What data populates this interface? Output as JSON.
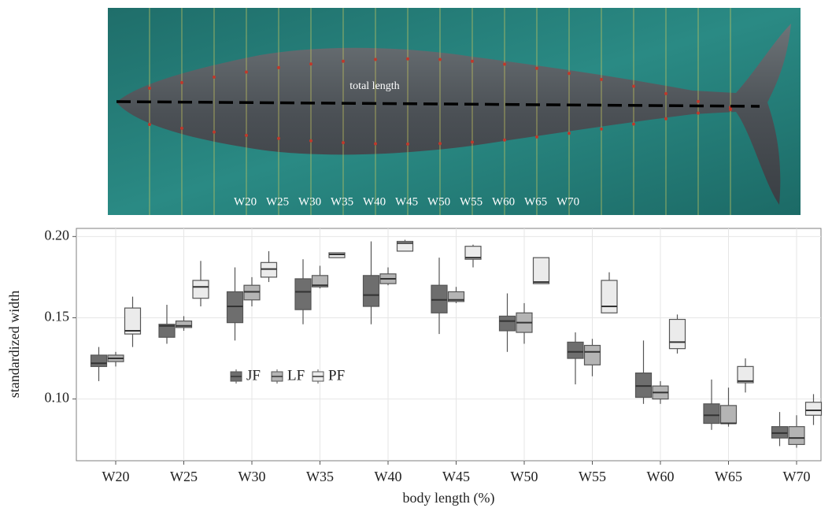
{
  "image": {
    "annotation": "total length",
    "width_labels": [
      "W20",
      "W25",
      "W30",
      "W35",
      "W40",
      "W45",
      "W50",
      "W55",
      "W60",
      "W65",
      "W70"
    ]
  },
  "chart_data": {
    "type": "box",
    "x_label": "body length (%)",
    "y_label": "standardized width",
    "categories": [
      "W20",
      "W25",
      "W30",
      "W35",
      "W40",
      "W45",
      "W50",
      "W55",
      "W60",
      "W65",
      "W70"
    ],
    "ylim": [
      0.062,
      0.205
    ],
    "yticks": [
      {
        "value": 0.1,
        "label": "0.10"
      },
      {
        "value": 0.15,
        "label": "0.15"
      },
      {
        "value": 0.2,
        "label": "0.20"
      }
    ],
    "grid": true,
    "legend": "left",
    "series": [
      {
        "name": "JF",
        "color": "#6e6e6e",
        "min": [
          0.111,
          0.134,
          0.136,
          0.146,
          0.146,
          0.14,
          0.129,
          0.109,
          0.097,
          0.081,
          0.071
        ],
        "q1": [
          0.12,
          0.138,
          0.147,
          0.155,
          0.157,
          0.153,
          0.142,
          0.125,
          0.101,
          0.085,
          0.076
        ],
        "median": [
          0.122,
          0.145,
          0.157,
          0.166,
          0.164,
          0.161,
          0.148,
          0.129,
          0.108,
          0.09,
          0.079
        ],
        "q3": [
          0.127,
          0.146,
          0.166,
          0.174,
          0.176,
          0.17,
          0.151,
          0.135,
          0.116,
          0.097,
          0.083
        ],
        "max": [
          0.132,
          0.158,
          0.181,
          0.186,
          0.197,
          0.187,
          0.165,
          0.141,
          0.136,
          0.112,
          0.092
        ]
      },
      {
        "name": "LF",
        "color": "#b4b4b4",
        "min": [
          0.12,
          0.142,
          0.157,
          0.168,
          0.17,
          0.159,
          0.134,
          0.114,
          0.097,
          0.083,
          0.07
        ],
        "q1": [
          0.123,
          0.144,
          0.161,
          0.169,
          0.171,
          0.16,
          0.141,
          0.121,
          0.1,
          0.085,
          0.072
        ],
        "median": [
          0.125,
          0.145,
          0.166,
          0.17,
          0.174,
          0.161,
          0.147,
          0.129,
          0.104,
          0.085,
          0.076
        ],
        "q3": [
          0.127,
          0.148,
          0.17,
          0.176,
          0.177,
          0.166,
          0.153,
          0.133,
          0.108,
          0.096,
          0.083
        ],
        "max": [
          0.129,
          0.151,
          0.175,
          0.182,
          0.181,
          0.169,
          0.159,
          0.137,
          0.111,
          0.107,
          0.09
        ]
      },
      {
        "name": "PF",
        "color": "#ebebeb",
        "min": [
          0.132,
          0.157,
          0.172,
          0.187,
          0.191,
          0.181,
          0.171,
          0.153,
          0.128,
          0.104,
          0.084
        ],
        "q1": [
          0.14,
          0.162,
          0.175,
          0.187,
          0.191,
          0.186,
          0.171,
          0.153,
          0.131,
          0.11,
          0.09
        ],
        "median": [
          0.142,
          0.169,
          0.18,
          0.189,
          0.196,
          0.187,
          0.172,
          0.157,
          0.135,
          0.111,
          0.093
        ],
        "q3": [
          0.156,
          0.173,
          0.184,
          0.19,
          0.197,
          0.194,
          0.187,
          0.173,
          0.149,
          0.12,
          0.098
        ],
        "max": [
          0.163,
          0.185,
          0.191,
          0.19,
          0.198,
          0.195,
          0.187,
          0.178,
          0.152,
          0.125,
          0.103
        ]
      }
    ]
  }
}
